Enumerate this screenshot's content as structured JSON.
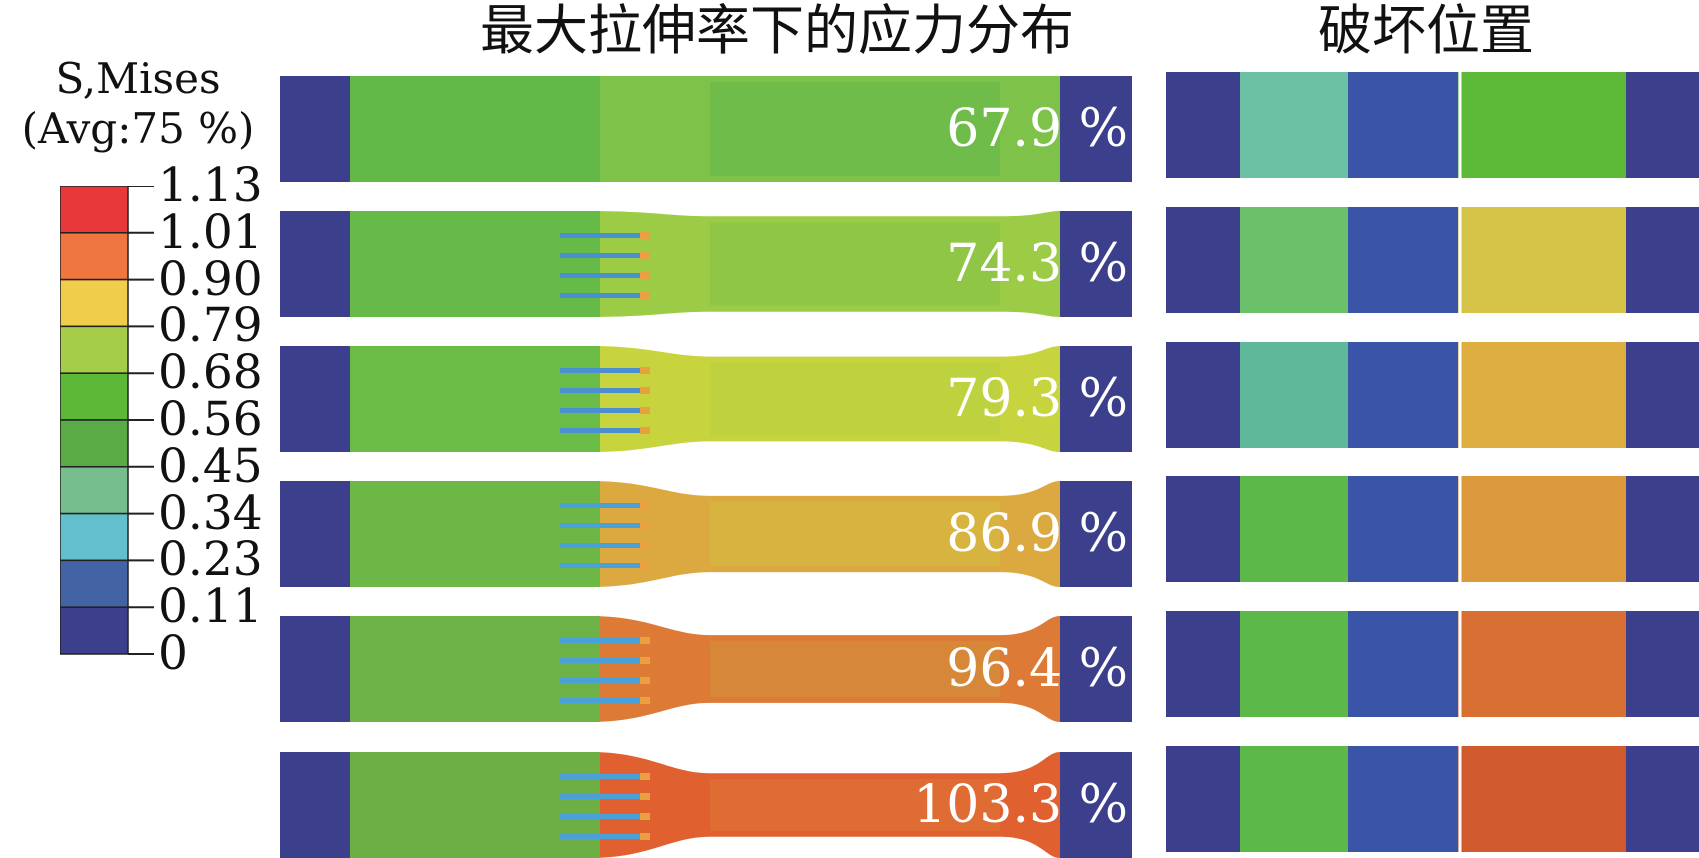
{
  "figure": {
    "title_left": "最大拉伸率下的应力分布",
    "title_right": "破坏位置"
  },
  "legend": {
    "header_line1": "S,Mises",
    "header_line2": "(Avg:75 %)",
    "colors": [
      "#e8383a",
      "#f07640",
      "#f0cd4a",
      "#a6cd4a",
      "#5db838",
      "#5aab45",
      "#76be8e",
      "#62bfcc",
      "#4463a5",
      "#3c3f8c"
    ],
    "labels": [
      "1.13",
      "1.01",
      "0.90",
      "0.79",
      "0.68",
      "0.56",
      "0.45",
      "0.34",
      "0.23",
      "0.11",
      "0"
    ]
  },
  "specimens": [
    {
      "strain_label": "67.9 %",
      "mid_color": "#6dbb4a",
      "end_color": "#7ec24a",
      "rod_color": "#57b8a8",
      "neck": 0.0
    },
    {
      "strain_label": "74.3 %",
      "mid_color": "#8ec645",
      "end_color": "#9ccb45",
      "rod_color": "#4a8fd0",
      "neck": 0.05
    },
    {
      "strain_label": "79.3 %",
      "mid_color": "#bcd13f",
      "end_color": "#c8d43e",
      "rod_color": "#4a8fd0",
      "neck": 0.1
    },
    {
      "strain_label": "86.9 %",
      "mid_color": "#d6b540",
      "end_color": "#dca840",
      "rod_color": "#4aa0d8",
      "neck": 0.14
    },
    {
      "strain_label": "96.4 %",
      "mid_color": "#d68a38",
      "end_color": "#dc7a36",
      "rod_color": "#4aa0d8",
      "neck": 0.18
    },
    {
      "strain_label": "103.3 %",
      "mid_color": "#de7034",
      "end_color": "#e06030",
      "rod_color": "#4aa0d8",
      "neck": 0.2
    }
  ],
  "failure": [
    {
      "left_color": "#6cc0a4",
      "right_color": "#5dba38"
    },
    {
      "left_color": "#6cc06a",
      "right_color": "#d6c448"
    },
    {
      "left_color": "#5fb89a",
      "right_color": "#dcae40"
    },
    {
      "left_color": "#5db84a",
      "right_color": "#dc9a3c"
    },
    {
      "left_color": "#5db84a",
      "right_color": "#d87034"
    },
    {
      "left_color": "#5db84a",
      "right_color": "#d05a2e"
    }
  ]
}
